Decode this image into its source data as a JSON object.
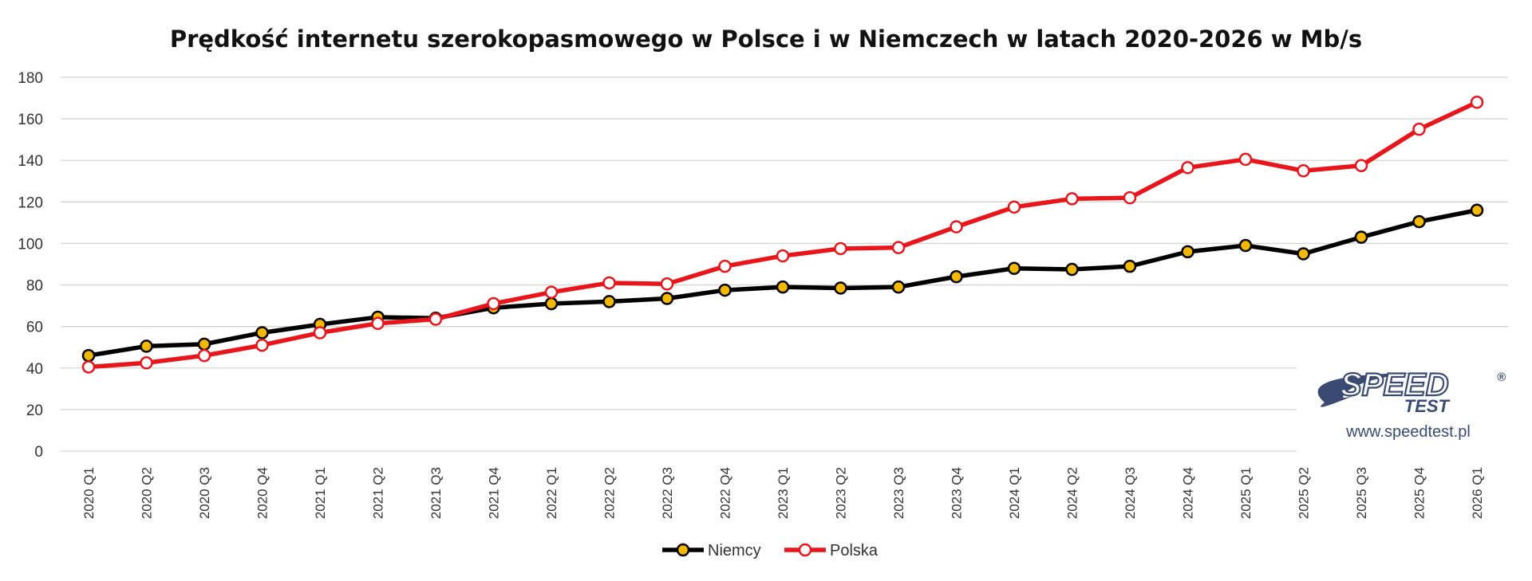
{
  "chart_data": {
    "type": "line",
    "title": "Prędkość internetu szerokopasmowego w Polsce i w Niemczech w latach 2020-2026 w Mb/s",
    "xlabel": "",
    "ylabel": "",
    "ylim": [
      0,
      180
    ],
    "yticks": [
      0,
      20,
      40,
      60,
      80,
      100,
      120,
      140,
      160,
      180
    ],
    "grid": true,
    "legend_position": "bottom",
    "categories": [
      "2020 Q1",
      "2020 Q2",
      "2020 Q3",
      "2020 Q4",
      "2021 Q1",
      "2021 Q2",
      "2021 Q3",
      "2021 Q4",
      "2022 Q1",
      "2022 Q2",
      "2022 Q3",
      "2022 Q4",
      "2023 Q1",
      "2023 Q2",
      "2023 Q3",
      "2023 Q4",
      "2024 Q1",
      "2024 Q2",
      "2024 Q3",
      "2024 Q4",
      "2025 Q1",
      "2025 Q2",
      "2025 Q3",
      "2025 Q4",
      "2026 Q1"
    ],
    "series": [
      {
        "name": "Niemcy",
        "color": "#000000",
        "marker_fill": "#f5b800",
        "values": [
          46,
          50.5,
          51.5,
          57,
          61,
          64.5,
          64,
          69,
          71,
          72,
          73.5,
          77.5,
          79,
          78.5,
          79,
          84,
          88,
          87.5,
          89,
          96,
          99,
          95,
          103,
          110.5,
          116
        ]
      },
      {
        "name": "Polska",
        "color": "#e8151b",
        "marker_fill": "#ffffff",
        "values": [
          40.5,
          42.5,
          46,
          51,
          57,
          61.5,
          63.5,
          71,
          76.5,
          81,
          80.5,
          89,
          94,
          97.5,
          98,
          108,
          117.5,
          121.5,
          122,
          136.5,
          140.5,
          135,
          137.5,
          155,
          168
        ]
      }
    ]
  },
  "logo": {
    "name": "SPEED",
    "sub": "TEST",
    "registered": "®",
    "url": "www.speedtest.pl"
  }
}
